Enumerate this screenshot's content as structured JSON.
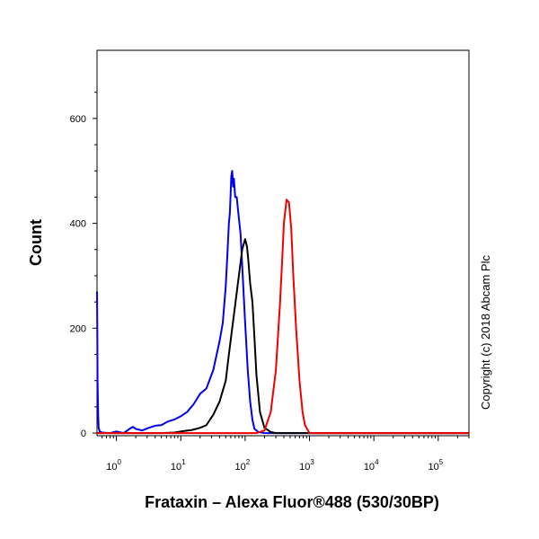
{
  "chart_data": {
    "type": "line",
    "ylabel": "Count",
    "xlabel": "Frataxin – Alexa Fluor®488 (530/30BP)",
    "copyright": "Copyright (c) 2018 Abcam Plc",
    "x_scale": "log",
    "xlim": [
      0.5,
      300000
    ],
    "ylim": [
      -5,
      730
    ],
    "y_ticks": [
      {
        "value": 0,
        "label": "0"
      },
      {
        "value": 200,
        "label": "200"
      },
      {
        "value": 400,
        "label": "400"
      },
      {
        "value": 600,
        "label": "600"
      }
    ],
    "x_ticks": [
      {
        "value": 1,
        "base": "10",
        "exp": "0"
      },
      {
        "value": 10,
        "base": "10",
        "exp": "1"
      },
      {
        "value": 100,
        "base": "10",
        "exp": "2"
      },
      {
        "value": 1000,
        "base": "10",
        "exp": "3"
      },
      {
        "value": 10000,
        "base": "10",
        "exp": "4"
      },
      {
        "value": 100000,
        "base": "10",
        "exp": "5"
      }
    ],
    "series": [
      {
        "color": "#0000ee",
        "points": [
          [
            0.5,
            270
          ],
          [
            0.505,
            200
          ],
          [
            0.51,
            100
          ],
          [
            0.52,
            40
          ],
          [
            0.53,
            10
          ],
          [
            0.55,
            3
          ],
          [
            0.6,
            1
          ],
          [
            0.8,
            0
          ],
          [
            1.0,
            3
          ],
          [
            1.3,
            0
          ],
          [
            1.6,
            8
          ],
          [
            1.8,
            12
          ],
          [
            2.0,
            8
          ],
          [
            2.5,
            5
          ],
          [
            3.2,
            10
          ],
          [
            4.0,
            14
          ],
          [
            5.0,
            15
          ],
          [
            6.3,
            22
          ],
          [
            8.0,
            26
          ],
          [
            10,
            32
          ],
          [
            12.5,
            40
          ],
          [
            15.8,
            55
          ],
          [
            20,
            75
          ],
          [
            25,
            85
          ],
          [
            32,
            120
          ],
          [
            40,
            175
          ],
          [
            45,
            210
          ],
          [
            50,
            280
          ],
          [
            53,
            340
          ],
          [
            56,
            400
          ],
          [
            58,
            420
          ],
          [
            61,
            490
          ],
          [
            63,
            500
          ],
          [
            65,
            470
          ],
          [
            67,
            485
          ],
          [
            70,
            450
          ],
          [
            74,
            450
          ],
          [
            80,
            410
          ],
          [
            85,
            380
          ],
          [
            90,
            320
          ],
          [
            100,
            210
          ],
          [
            110,
            120
          ],
          [
            120,
            60
          ],
          [
            130,
            25
          ],
          [
            140,
            8
          ],
          [
            160,
            2
          ],
          [
            200,
            0
          ],
          [
            300000,
            0
          ]
        ]
      },
      {
        "color": "#000000",
        "points": [
          [
            0.5,
            0
          ],
          [
            5,
            0
          ],
          [
            8,
            1
          ],
          [
            10,
            3
          ],
          [
            15,
            6
          ],
          [
            20,
            10
          ],
          [
            25,
            15
          ],
          [
            32,
            35
          ],
          [
            40,
            60
          ],
          [
            50,
            100
          ],
          [
            56,
            150
          ],
          [
            63,
            200
          ],
          [
            71,
            250
          ],
          [
            80,
            300
          ],
          [
            90,
            350
          ],
          [
            100,
            370
          ],
          [
            107,
            355
          ],
          [
            112,
            330
          ],
          [
            120,
            285
          ],
          [
            130,
            250
          ],
          [
            140,
            180
          ],
          [
            150,
            110
          ],
          [
            170,
            40
          ],
          [
            200,
            10
          ],
          [
            250,
            2
          ],
          [
            300,
            0
          ],
          [
            300000,
            0
          ]
        ]
      },
      {
        "color": "#ee0000",
        "points": [
          [
            0.5,
            0
          ],
          [
            150,
            0
          ],
          [
            200,
            5
          ],
          [
            250,
            40
          ],
          [
            300,
            120
          ],
          [
            350,
            250
          ],
          [
            380,
            340
          ],
          [
            400,
            400
          ],
          [
            440,
            445
          ],
          [
            480,
            440
          ],
          [
            520,
            390
          ],
          [
            560,
            300
          ],
          [
            620,
            200
          ],
          [
            700,
            100
          ],
          [
            780,
            40
          ],
          [
            850,
            15
          ],
          [
            1000,
            0
          ],
          [
            300000,
            0
          ]
        ]
      }
    ]
  }
}
